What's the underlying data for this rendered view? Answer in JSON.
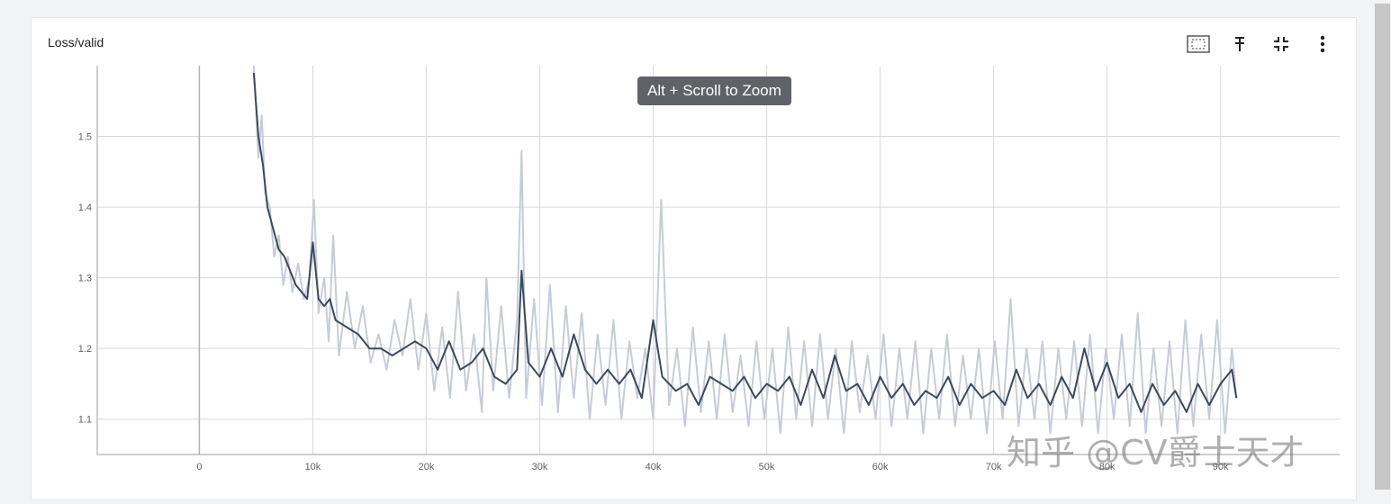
{
  "card": {
    "title": "Loss/valid",
    "toolbar": [
      {
        "name": "fit-domain-icon"
      },
      {
        "name": "pin-icon"
      },
      {
        "name": "collapse-icon"
      },
      {
        "name": "more-vert-icon"
      }
    ]
  },
  "tooltip": "Alt + Scroll to Zoom",
  "watermark": "知乎 @CV爵士天才",
  "colors": {
    "smoothed": "#3a4a5f",
    "raw": "#c5ccd9",
    "grid": "#d9d9d9",
    "zero_axis": "#b3b3b3"
  },
  "chart_data": {
    "type": "line",
    "title": "Loss/valid",
    "xlabel": "",
    "ylabel": "",
    "xlim": [
      -9000,
      100500
    ],
    "ylim": [
      1.05,
      1.6
    ],
    "x_ticks": [
      0,
      10000,
      20000,
      30000,
      40000,
      50000,
      60000,
      70000,
      80000,
      90000
    ],
    "x_tick_labels": [
      "0",
      "10k",
      "20k",
      "30k",
      "40k",
      "50k",
      "60k",
      "70k",
      "80k",
      "90k"
    ],
    "y_ticks": [
      1.1,
      1.2,
      1.3,
      1.4,
      1.5
    ],
    "y_tick_labels": [
      "1.1",
      "1.2",
      "1.3",
      "1.4",
      "1.5"
    ],
    "grid": true,
    "series": [
      {
        "kind": "smoothed",
        "x": [
          4800,
          5200,
          5600,
          6000,
          6500,
          7000,
          7500,
          8000,
          8500,
          9000,
          9500,
          10000,
          10500,
          11000,
          11500,
          12000,
          13000,
          14000,
          15000,
          16000,
          17000,
          18000,
          19000,
          20000,
          21000,
          22000,
          23000,
          24000,
          25000,
          26000,
          27000,
          28000,
          28400,
          29000,
          30000,
          31000,
          32000,
          33000,
          34000,
          35000,
          36000,
          37000,
          38000,
          39000,
          40000,
          40800,
          42000,
          43000,
          44000,
          45000,
          46000,
          47000,
          48000,
          49000,
          50000,
          51000,
          52000,
          53000,
          54000,
          55000,
          56000,
          57000,
          58000,
          59000,
          60000,
          61000,
          62000,
          63000,
          64000,
          65000,
          66000,
          67000,
          68000,
          69000,
          70000,
          71000,
          72000,
          73000,
          74000,
          75000,
          76000,
          77000,
          78000,
          79000,
          80000,
          81000,
          82000,
          83000,
          84000,
          85000,
          86000,
          87000,
          88000,
          89000,
          90000,
          91000,
          91400
        ],
        "y": [
          1.59,
          1.5,
          1.46,
          1.4,
          1.37,
          1.34,
          1.33,
          1.31,
          1.29,
          1.28,
          1.27,
          1.35,
          1.27,
          1.26,
          1.27,
          1.24,
          1.23,
          1.22,
          1.2,
          1.2,
          1.19,
          1.2,
          1.21,
          1.2,
          1.17,
          1.21,
          1.17,
          1.18,
          1.2,
          1.16,
          1.15,
          1.17,
          1.31,
          1.18,
          1.16,
          1.2,
          1.16,
          1.22,
          1.17,
          1.15,
          1.17,
          1.15,
          1.17,
          1.13,
          1.24,
          1.16,
          1.14,
          1.15,
          1.12,
          1.16,
          1.15,
          1.14,
          1.16,
          1.13,
          1.15,
          1.14,
          1.16,
          1.12,
          1.17,
          1.13,
          1.19,
          1.14,
          1.15,
          1.12,
          1.16,
          1.13,
          1.15,
          1.12,
          1.14,
          1.13,
          1.16,
          1.12,
          1.15,
          1.13,
          1.14,
          1.12,
          1.17,
          1.13,
          1.15,
          1.12,
          1.16,
          1.13,
          1.2,
          1.14,
          1.18,
          1.13,
          1.15,
          1.11,
          1.15,
          1.12,
          1.14,
          1.11,
          1.15,
          1.12,
          1.15,
          1.17,
          1.13
        ]
      },
      {
        "kind": "raw",
        "x": [
          4800,
          5200,
          5500,
          5800,
          6200,
          6600,
          7000,
          7400,
          7800,
          8200,
          8700,
          9200,
          9700,
          10100,
          10500,
          11000,
          11400,
          11800,
          12300,
          13000,
          13700,
          14400,
          15100,
          15800,
          16500,
          17200,
          17900,
          18600,
          19300,
          20000,
          20700,
          21400,
          22100,
          22800,
          23500,
          24200,
          24900,
          25300,
          25900,
          26600,
          27300,
          28000,
          28400,
          28800,
          29500,
          30200,
          30900,
          31600,
          32300,
          33000,
          33700,
          34400,
          35100,
          35800,
          36500,
          37200,
          37900,
          38600,
          39300,
          40000,
          40700,
          41400,
          42100,
          42800,
          43500,
          44200,
          44900,
          45600,
          46300,
          47000,
          47700,
          48400,
          49100,
          49800,
          50500,
          51200,
          51900,
          52600,
          53300,
          54000,
          54700,
          55400,
          56100,
          56800,
          57500,
          58200,
          58900,
          59600,
          60300,
          61000,
          61700,
          62400,
          63100,
          63800,
          64500,
          65200,
          65900,
          66600,
          67300,
          68000,
          68700,
          69400,
          70100,
          70800,
          71500,
          72200,
          72900,
          73600,
          74300,
          75000,
          75700,
          76400,
          77100,
          77800,
          78500,
          79200,
          79900,
          80600,
          81300,
          82000,
          82700,
          83400,
          84100,
          84800,
          85500,
          86200,
          86900,
          87600,
          88300,
          89000,
          89700,
          90400,
          91000,
          91400
        ],
        "y": [
          1.6,
          1.47,
          1.53,
          1.42,
          1.4,
          1.33,
          1.36,
          1.29,
          1.33,
          1.28,
          1.32,
          1.27,
          1.3,
          1.41,
          1.25,
          1.3,
          1.21,
          1.36,
          1.19,
          1.28,
          1.2,
          1.26,
          1.18,
          1.22,
          1.17,
          1.24,
          1.19,
          1.27,
          1.17,
          1.25,
          1.14,
          1.23,
          1.13,
          1.28,
          1.14,
          1.22,
          1.11,
          1.3,
          1.14,
          1.26,
          1.13,
          1.24,
          1.48,
          1.13,
          1.27,
          1.12,
          1.29,
          1.11,
          1.26,
          1.13,
          1.25,
          1.1,
          1.22,
          1.12,
          1.24,
          1.1,
          1.21,
          1.13,
          1.2,
          1.1,
          1.41,
          1.12,
          1.2,
          1.09,
          1.23,
          1.11,
          1.21,
          1.1,
          1.22,
          1.11,
          1.19,
          1.09,
          1.21,
          1.1,
          1.2,
          1.08,
          1.23,
          1.1,
          1.21,
          1.09,
          1.22,
          1.1,
          1.2,
          1.08,
          1.21,
          1.11,
          1.19,
          1.1,
          1.22,
          1.09,
          1.2,
          1.1,
          1.21,
          1.08,
          1.2,
          1.1,
          1.22,
          1.09,
          1.19,
          1.1,
          1.2,
          1.08,
          1.21,
          1.1,
          1.27,
          1.09,
          1.2,
          1.1,
          1.21,
          1.08,
          1.2,
          1.1,
          1.21,
          1.09,
          1.22,
          1.08,
          1.2,
          1.1,
          1.22,
          1.09,
          1.25,
          1.08,
          1.2,
          1.09,
          1.21,
          1.08,
          1.24,
          1.09,
          1.22,
          1.1,
          1.24,
          1.08,
          1.2,
          1.13
        ]
      }
    ]
  }
}
